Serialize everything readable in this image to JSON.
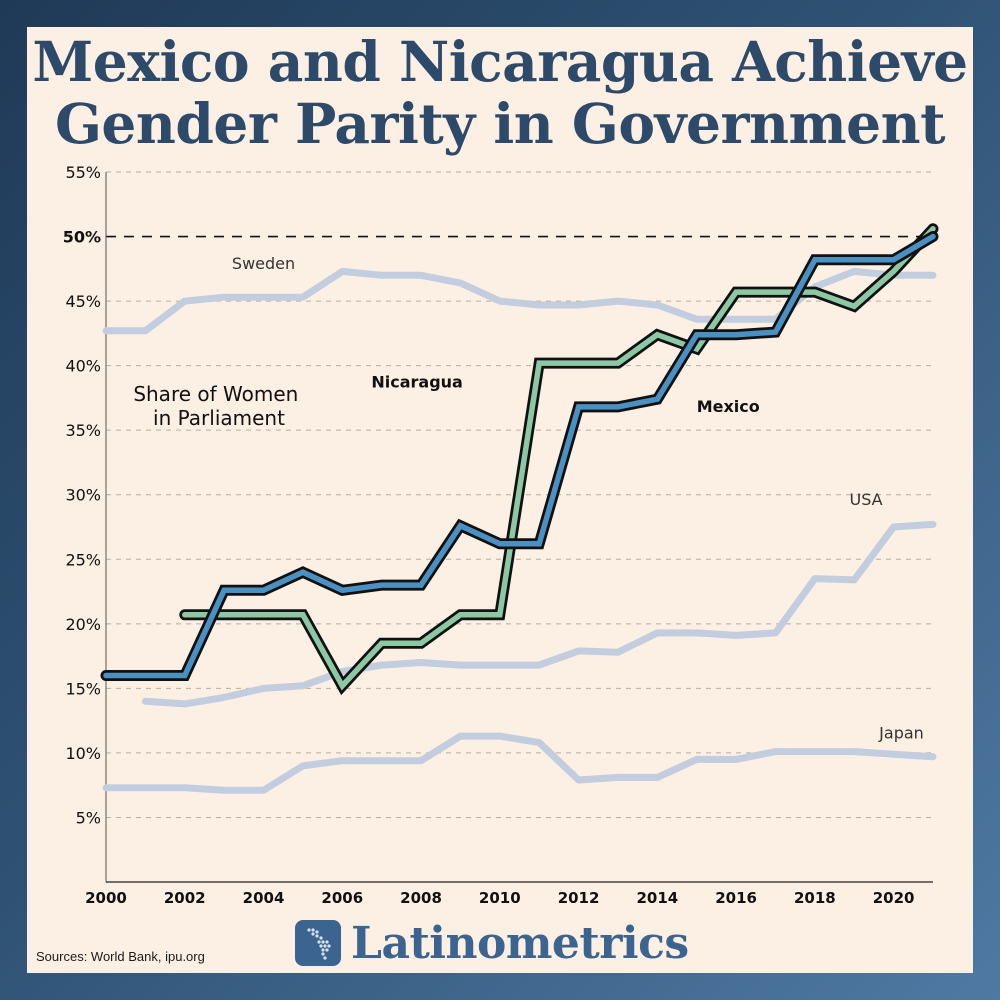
{
  "title_lines": [
    "Mexico and Nicaragua Achieve",
    "Gender Parity in Government"
  ],
  "brand": "Latinometrics",
  "sources": "Sources: World Bank, ipu.org",
  "colors": {
    "background": "#fcefe3",
    "title": "#2d4a6a",
    "mexico": "#4a90c2",
    "nicaragua": "#8cc8a4",
    "reference": "#c2cde0",
    "outline": "#111111",
    "brand": "#3b6490"
  },
  "chart_data": {
    "type": "line",
    "title": "Share of Women in Parliament",
    "title_lines": [
      "Share of Women",
      "in Parliament"
    ],
    "xlabel": "",
    "ylabel": "",
    "xlim": [
      2000,
      2021
    ],
    "ylim": [
      0,
      55
    ],
    "x_ticks": [
      "2000",
      "2002",
      "2004",
      "2006",
      "2008",
      "2010",
      "2012",
      "2014",
      "2016",
      "2018",
      "2020"
    ],
    "y_ticks": [
      "5%",
      "10%",
      "15%",
      "20%",
      "25%",
      "30%",
      "35%",
      "40%",
      "45%",
      "50%",
      "55%"
    ],
    "grid": true,
    "reference_line": {
      "y": 50,
      "label": "50%"
    },
    "series": [
      {
        "name": "Sweden",
        "style": "reference",
        "label_at": [
          2004,
          47.5
        ],
        "x": [
          2000,
          2001,
          2002,
          2003,
          2004,
          2005,
          2006,
          2007,
          2008,
          2009,
          2010,
          2011,
          2012,
          2013,
          2014,
          2015,
          2016,
          2017,
          2018,
          2019,
          2020,
          2021
        ],
        "values": [
          42.7,
          42.7,
          45.0,
          45.3,
          45.3,
          45.3,
          47.3,
          47.0,
          47.0,
          46.4,
          45.0,
          44.7,
          44.7,
          45.0,
          44.7,
          43.6,
          43.6,
          43.6,
          46.1,
          47.3,
          47.0,
          47.0
        ]
      },
      {
        "name": "USA",
        "style": "reference",
        "label_at": [
          2019.3,
          29.2
        ],
        "x": [
          2001,
          2002,
          2003,
          2004,
          2005,
          2006,
          2007,
          2008,
          2009,
          2010,
          2011,
          2012,
          2013,
          2014,
          2015,
          2016,
          2017,
          2018,
          2019,
          2020,
          2021
        ],
        "values": [
          14.0,
          13.8,
          14.3,
          15.0,
          15.2,
          16.3,
          16.8,
          17.0,
          16.8,
          16.8,
          16.8,
          17.9,
          17.8,
          19.3,
          19.3,
          19.1,
          19.3,
          23.5,
          23.4,
          27.5,
          27.7
        ]
      },
      {
        "name": "Japan",
        "style": "reference",
        "label_at": [
          2020.2,
          11.1
        ],
        "x": [
          2000,
          2001,
          2002,
          2003,
          2004,
          2005,
          2006,
          2007,
          2008,
          2009,
          2010,
          2011,
          2012,
          2013,
          2014,
          2015,
          2016,
          2017,
          2018,
          2019,
          2020,
          2021
        ],
        "values": [
          7.3,
          7.3,
          7.3,
          7.1,
          7.1,
          9.0,
          9.4,
          9.4,
          9.4,
          11.3,
          11.3,
          10.8,
          7.9,
          8.1,
          8.1,
          9.5,
          9.5,
          10.1,
          10.1,
          10.1,
          9.9,
          9.7
        ]
      },
      {
        "name": "Nicaragua",
        "style": "highlight-green",
        "label_at": [
          2007.9,
          38.3
        ],
        "x": [
          2002,
          2003,
          2004,
          2005,
          2006,
          2007,
          2008,
          2009,
          2010,
          2011,
          2012,
          2013,
          2014,
          2015,
          2016,
          2017,
          2018,
          2019,
          2020,
          2021
        ],
        "values": [
          20.7,
          20.7,
          20.7,
          20.7,
          15.2,
          18.5,
          18.5,
          20.7,
          20.7,
          40.2,
          40.2,
          40.2,
          42.4,
          41.3,
          45.7,
          45.7,
          45.7,
          44.6,
          47.3,
          50.6
        ]
      },
      {
        "name": "Mexico",
        "style": "highlight-blue",
        "label_at": [
          2015.8,
          36.4
        ],
        "x": [
          2000,
          2001,
          2002,
          2003,
          2004,
          2005,
          2006,
          2007,
          2008,
          2009,
          2010,
          2011,
          2012,
          2013,
          2014,
          2015,
          2016,
          2017,
          2018,
          2019,
          2020,
          2021
        ],
        "values": [
          16.0,
          16.0,
          16.0,
          22.6,
          22.6,
          24.0,
          22.6,
          23.0,
          23.0,
          27.6,
          26.2,
          26.2,
          36.8,
          36.8,
          37.4,
          42.4,
          42.4,
          42.6,
          48.2,
          48.2,
          48.2,
          50.0
        ]
      }
    ]
  }
}
